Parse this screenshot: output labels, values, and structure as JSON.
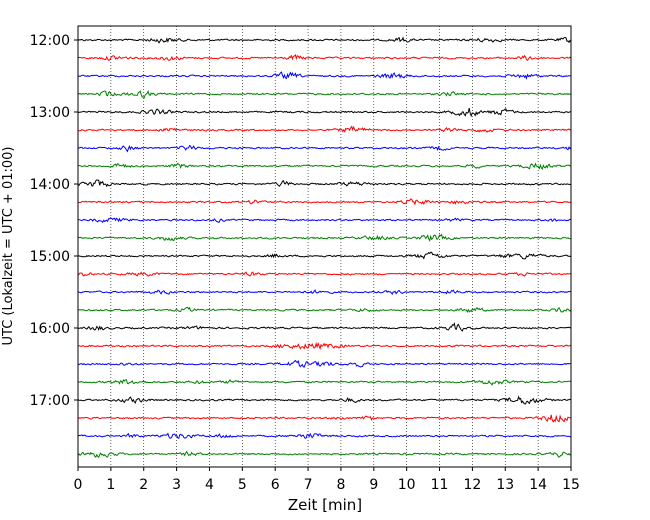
{
  "chart_data": {
    "type": "line",
    "title": "",
    "xlabel": "Zeit  [min]",
    "ylabel": "UTC (Lokalzeit = UTC + 01:00)",
    "xlim": [
      0,
      15
    ],
    "x_ticks": [
      "0",
      "1",
      "2",
      "3",
      "4",
      "5",
      "6",
      "7",
      "8",
      "9",
      "10",
      "11",
      "12",
      "13",
      "14",
      "15"
    ],
    "y_ticks": [
      "12:00",
      "13:00",
      "14:00",
      "15:00",
      "16:00",
      "17:00"
    ],
    "grid": "vertical dotted",
    "trace_interval_minutes": 15,
    "traces_start": "12:00",
    "trace_count": 24,
    "trace_colors": [
      "#000000",
      "#ff0000",
      "#0000ff",
      "#008000"
    ]
  }
}
